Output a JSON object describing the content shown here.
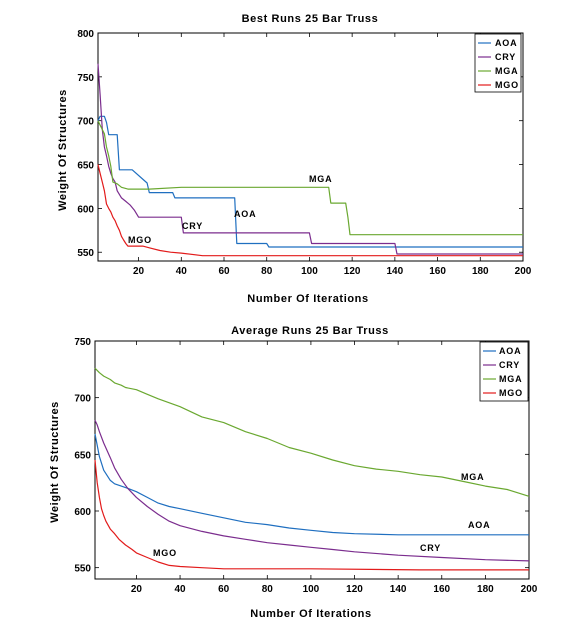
{
  "chart_data": [
    {
      "type": "line",
      "title": "Best Runs 25 Bar Truss",
      "xlabel": "Number Of Iterations",
      "ylabel": "Weight Of Structures",
      "xlim": [
        1,
        200
      ],
      "ylim": [
        540,
        800
      ],
      "xticks": [
        20,
        40,
        60,
        80,
        100,
        120,
        140,
        160,
        180,
        200
      ],
      "yticks": [
        550,
        600,
        650,
        700,
        750,
        800
      ],
      "grid": false,
      "legend_position": "top-right",
      "series": [
        {
          "name": "AOA",
          "color": "#1f6fc0",
          "x": [
            1,
            2,
            3,
            4,
            5,
            6,
            7,
            8,
            10,
            11,
            17,
            24,
            25,
            27,
            36,
            37,
            65,
            66,
            80,
            81,
            140,
            141,
            200
          ],
          "y": [
            700,
            705,
            705,
            705,
            698,
            684,
            684,
            684,
            684,
            644,
            644,
            629,
            618,
            618,
            618,
            612,
            612,
            560,
            560,
            556,
            556,
            556,
            556
          ]
        },
        {
          "name": "CRY",
          "color": "#7b2d8e",
          "x": [
            1,
            2,
            3,
            4,
            5,
            6,
            7,
            8,
            9,
            10,
            12,
            14,
            16,
            18,
            20,
            25,
            40,
            41,
            100,
            101,
            140,
            141,
            200
          ],
          "y": [
            765,
            730,
            690,
            670,
            660,
            648,
            640,
            634,
            630,
            620,
            612,
            608,
            604,
            598,
            590,
            590,
            590,
            572,
            572,
            560,
            560,
            548,
            548
          ]
        },
        {
          "name": "MGA",
          "color": "#6aa830",
          "x": [
            1,
            2,
            3,
            4,
            5,
            6,
            7,
            8,
            10,
            12,
            15,
            20,
            25,
            40,
            109,
            110,
            117,
            118,
            119,
            200
          ],
          "y": [
            700,
            695,
            690,
            685,
            670,
            660,
            648,
            630,
            628,
            624,
            622,
            622,
            622,
            624,
            624,
            606,
            606,
            590,
            570,
            570
          ]
        },
        {
          "name": "MGO",
          "color": "#e21b1b",
          "x": [
            1,
            2,
            3,
            4,
            5,
            6,
            7,
            8,
            9,
            10,
            11,
            12,
            13,
            14,
            15,
            17,
            19,
            22,
            25,
            30,
            35,
            40,
            50,
            60,
            80,
            100,
            150,
            200
          ],
          "y": [
            650,
            640,
            630,
            620,
            605,
            600,
            596,
            590,
            586,
            580,
            575,
            568,
            564,
            560,
            557,
            557,
            557,
            557,
            555,
            552,
            550,
            549,
            546,
            546,
            546,
            546,
            546,
            546
          ]
        }
      ],
      "annotations": [
        "MGA",
        "AOA",
        "CRY",
        "MGO"
      ]
    },
    {
      "type": "line",
      "title": "Average Runs 25 Bar Truss",
      "xlabel": "Number Of Iterations",
      "ylabel": "Weight Of Structures",
      "xlim": [
        1,
        200
      ],
      "ylim": [
        540,
        750
      ],
      "xticks": [
        20,
        40,
        60,
        80,
        100,
        120,
        140,
        160,
        180,
        200
      ],
      "yticks": [
        550,
        600,
        650,
        700,
        750
      ],
      "grid": false,
      "legend_position": "top-right",
      "series": [
        {
          "name": "AOA",
          "color": "#1f6fc0",
          "x": [
            1,
            3,
            5,
            8,
            10,
            13,
            16,
            20,
            25,
            30,
            35,
            40,
            50,
            60,
            70,
            80,
            90,
            100,
            110,
            120,
            140,
            160,
            180,
            200
          ],
          "y": [
            668,
            648,
            636,
            627,
            624,
            622,
            620,
            617,
            612,
            607,
            604,
            602,
            598,
            594,
            590,
            588,
            585,
            583,
            581,
            580,
            579,
            579,
            579,
            579
          ]
        },
        {
          "name": "CRY",
          "color": "#7b2d8e",
          "x": [
            1,
            2,
            3,
            5,
            8,
            10,
            13,
            16,
            20,
            25,
            30,
            35,
            40,
            50,
            60,
            70,
            80,
            90,
            100,
            110,
            120,
            140,
            160,
            180,
            200
          ],
          "y": [
            680,
            676,
            670,
            660,
            647,
            638,
            628,
            620,
            612,
            604,
            597,
            591,
            587,
            582,
            578,
            575,
            572,
            570,
            568,
            566,
            564,
            561,
            559,
            557,
            556
          ]
        },
        {
          "name": "MGA",
          "color": "#6aa830",
          "x": [
            1,
            3,
            5,
            8,
            10,
            13,
            15,
            20,
            25,
            30,
            40,
            50,
            60,
            70,
            80,
            90,
            100,
            110,
            120,
            130,
            140,
            150,
            160,
            170,
            180,
            190,
            200
          ],
          "y": [
            726,
            722,
            719,
            716,
            713,
            711,
            709,
            707,
            703,
            699,
            692,
            683,
            678,
            670,
            664,
            656,
            651,
            645,
            640,
            637,
            635,
            632,
            630,
            626,
            622,
            619,
            613
          ]
        },
        {
          "name": "MGO",
          "color": "#e21b1b",
          "x": [
            1,
            2,
            3,
            4,
            5,
            6,
            8,
            10,
            12,
            15,
            18,
            20,
            25,
            30,
            35,
            40,
            50,
            60,
            80,
            100,
            150,
            200
          ],
          "y": [
            645,
            625,
            612,
            602,
            596,
            591,
            584,
            580,
            575,
            570,
            566,
            563,
            559,
            555,
            552,
            551,
            550,
            549,
            549,
            549,
            548,
            548
          ]
        }
      ],
      "annotations": [
        "MGA",
        "AOA",
        "CRY",
        "MGO"
      ]
    }
  ]
}
